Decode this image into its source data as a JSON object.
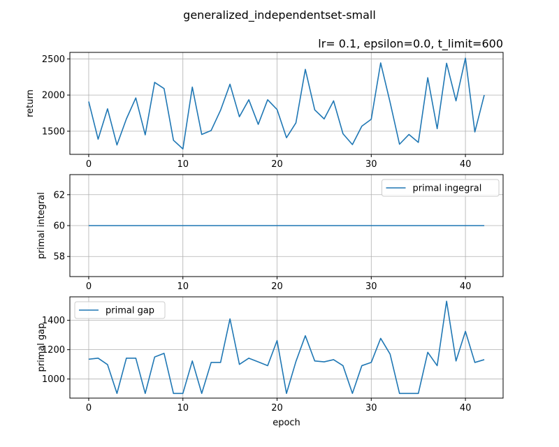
{
  "figure": {
    "suptitle": "generalized_independentset-small",
    "xlabel": "epoch"
  },
  "chart_data": [
    {
      "type": "line",
      "title": "lr= 0.1, epsilon=0.0, t_limit=600",
      "xlabel": "",
      "ylabel": "return",
      "xlim": [
        -2,
        44
      ],
      "ylim": [
        1180,
        2590
      ],
      "xticks": [
        0,
        10,
        20,
        30,
        40
      ],
      "yticks": [
        1500,
        2000,
        2500
      ],
      "grid": true,
      "legend": null,
      "color": "#1f77b4",
      "series": [
        {
          "name": "",
          "x": [
            0,
            1,
            2,
            3,
            4,
            5,
            6,
            7,
            8,
            9,
            10,
            11,
            12,
            13,
            14,
            15,
            16,
            17,
            18,
            19,
            20,
            21,
            22,
            23,
            24,
            25,
            26,
            27,
            28,
            29,
            30,
            31,
            32,
            33,
            34,
            35,
            36,
            37,
            38,
            39,
            40,
            41,
            42
          ],
          "y": [
            1910,
            1390,
            1810,
            1310,
            1670,
            1960,
            1450,
            2175,
            2090,
            1375,
            1255,
            2110,
            1455,
            1510,
            1790,
            2150,
            1700,
            1935,
            1595,
            1935,
            1800,
            1410,
            1615,
            2355,
            1795,
            1670,
            1920,
            1465,
            1315,
            1570,
            1665,
            2445,
            1900,
            1320,
            1455,
            1345,
            2240,
            1535,
            2440,
            1920,
            2510,
            1490,
            2000
          ]
        }
      ]
    },
    {
      "type": "line",
      "title": "",
      "xlabel": "",
      "ylabel": "primal integral",
      "xlim": [
        -2,
        44
      ],
      "ylim": [
        56.7,
        63.3
      ],
      "xticks": [
        0,
        10,
        20,
        30,
        40
      ],
      "yticks": [
        58,
        60,
        62
      ],
      "grid": true,
      "legend": "upper right",
      "color": "#1f77b4",
      "series": [
        {
          "name": "primal ingegral",
          "x": [
            0,
            42
          ],
          "y": [
            60,
            60
          ]
        }
      ]
    },
    {
      "type": "line",
      "title": "",
      "xlabel": "epoch",
      "ylabel": "primal gap",
      "xlim": [
        -2,
        44
      ],
      "ylim": [
        870,
        1560
      ],
      "xticks": [
        0,
        10,
        20,
        30,
        40
      ],
      "yticks": [
        1000,
        1200,
        1400
      ],
      "grid": true,
      "legend": "upper left",
      "color": "#1f77b4",
      "series": [
        {
          "name": "primal gap",
          "x": [
            0,
            1,
            2,
            3,
            4,
            5,
            6,
            7,
            8,
            9,
            10,
            11,
            12,
            13,
            14,
            15,
            16,
            17,
            18,
            19,
            20,
            21,
            22,
            23,
            24,
            25,
            26,
            27,
            28,
            29,
            30,
            31,
            32,
            33,
            34,
            35,
            36,
            37,
            38,
            39,
            40,
            41,
            42
          ],
          "y": [
            1135,
            1142,
            1098,
            902,
            1142,
            1142,
            902,
            1150,
            1175,
            902,
            902,
            1123,
            902,
            1113,
            1113,
            1410,
            1100,
            1142,
            1117,
            1091,
            1262,
            902,
            1119,
            1295,
            1123,
            1117,
            1132,
            1091,
            902,
            1091,
            1113,
            1277,
            1170,
            902,
            902,
            902,
            1182,
            1091,
            1530,
            1123,
            1325,
            1113,
            1132
          ]
        }
      ]
    }
  ]
}
